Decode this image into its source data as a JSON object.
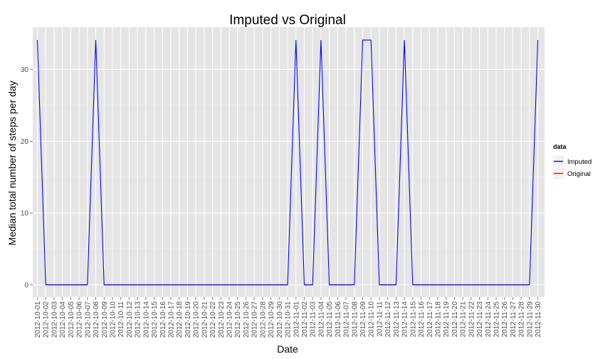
{
  "chart_data": {
    "type": "line",
    "title": "Imputed vs Original",
    "xlabel": "Date",
    "ylabel": "Median total number of steps per day",
    "ylim": [
      -1.7,
      35.9
    ],
    "yticks": [
      0,
      10,
      20,
      30
    ],
    "grid": true,
    "legend": {
      "title": "data",
      "position": "right"
    },
    "x": [
      "2012-10-01",
      "2012-10-02",
      "2012-10-03",
      "2012-10-04",
      "2012-10-05",
      "2012-10-06",
      "2012-10-07",
      "2012-10-08",
      "2012-10-09",
      "2012-10-10",
      "2012-10-11",
      "2012-10-12",
      "2012-10-13",
      "2012-10-14",
      "2012-10-15",
      "2012-10-16",
      "2012-10-17",
      "2012-10-18",
      "2012-10-19",
      "2012-10-20",
      "2012-10-21",
      "2012-10-22",
      "2012-10-23",
      "2012-10-24",
      "2012-10-25",
      "2012-10-26",
      "2012-10-27",
      "2012-10-28",
      "2012-10-29",
      "2012-10-30",
      "2012-10-31",
      "2012-11-01",
      "2012-11-02",
      "2012-11-03",
      "2012-11-04",
      "2012-11-05",
      "2012-11-06",
      "2012-11-07",
      "2012-11-08",
      "2012-11-09",
      "2012-11-10",
      "2012-11-11",
      "2012-11-12",
      "2012-11-13",
      "2012-11-14",
      "2012-11-15",
      "2012-11-16",
      "2012-11-17",
      "2012-11-18",
      "2012-11-19",
      "2012-11-20",
      "2012-11-21",
      "2012-11-22",
      "2012-11-23",
      "2012-11-24",
      "2012-11-25",
      "2012-11-26",
      "2012-11-27",
      "2012-11-28",
      "2012-11-29",
      "2012-11-30"
    ],
    "series": [
      {
        "name": "Imputed",
        "color": "#0000ff",
        "values": [
          34.1,
          0,
          0,
          0,
          0,
          0,
          0,
          34.1,
          0,
          0,
          0,
          0,
          0,
          0,
          0,
          0,
          0,
          0,
          0,
          0,
          0,
          0,
          0,
          0,
          0,
          0,
          0,
          0,
          0,
          0,
          0,
          34.1,
          0,
          0,
          34.1,
          0,
          0,
          0,
          0,
          34.1,
          34.1,
          0,
          0,
          0,
          34.1,
          0,
          0,
          0,
          0,
          0,
          0,
          0,
          0,
          0,
          0,
          0,
          0,
          0,
          0,
          0,
          34.1
        ]
      },
      {
        "name": "Original",
        "color": "#ff0000",
        "values": [
          null,
          0,
          0,
          0,
          0,
          0,
          0,
          null,
          0,
          0,
          0,
          0,
          0,
          0,
          0,
          0,
          0,
          0,
          0,
          0,
          0,
          0,
          0,
          0,
          0,
          0,
          0,
          0,
          0,
          0,
          0,
          null,
          0,
          0,
          null,
          0,
          0,
          0,
          0,
          null,
          null,
          0,
          0,
          0,
          null,
          0,
          0,
          0,
          0,
          0,
          0,
          0,
          0,
          0,
          0,
          0,
          0,
          0,
          0,
          0,
          null
        ]
      }
    ]
  }
}
